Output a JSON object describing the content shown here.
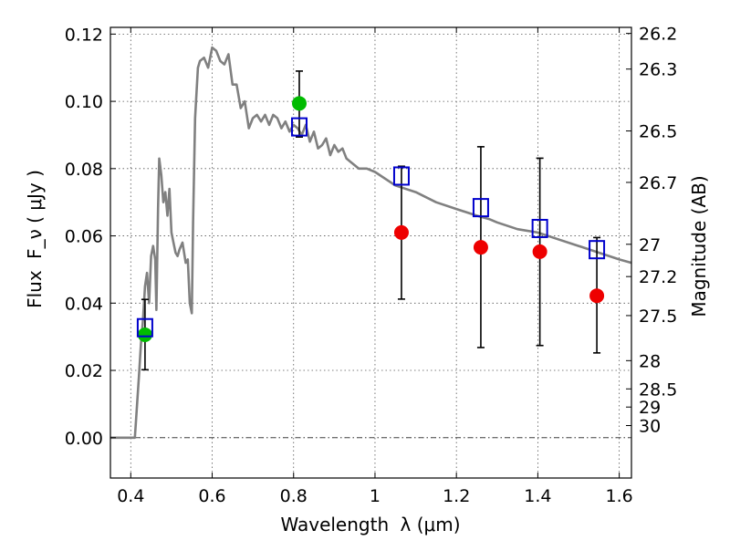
{
  "chart_data": {
    "type": "line",
    "title": "",
    "xlabel": "Wavelength",
    "xlabel_symbol": "λ (μm)",
    "ylabel": "Flux",
    "ylabel_symbol": "F_ν ( μJy )",
    "y2label": "Magnitude (AB)",
    "xlim": [
      0.35,
      1.63
    ],
    "ylim": [
      -0.012,
      0.122
    ],
    "grid": true,
    "x_ticks": [
      0.4,
      0.6,
      0.8,
      1.0,
      1.2,
      1.4,
      1.6
    ],
    "x_tick_labels": [
      "0.4",
      "0.6",
      "0.8",
      "1",
      "1.2",
      "1.4",
      "1.6"
    ],
    "y_ticks": [
      0.0,
      0.02,
      0.04,
      0.06,
      0.08,
      0.1,
      0.12
    ],
    "y_tick_labels": [
      "0.00",
      "0.02",
      "0.04",
      "0.06",
      "0.08",
      "0.10",
      "0.12"
    ],
    "y2_ticks": [
      {
        "flux": 0.1202,
        "label": "26.2"
      },
      {
        "flux": 0.1096,
        "label": "26.3"
      },
      {
        "flux": 0.0912,
        "label": "26.5"
      },
      {
        "flux": 0.0759,
        "label": "26.7"
      },
      {
        "flux": 0.0575,
        "label": "27"
      },
      {
        "flux": 0.0479,
        "label": "27.2"
      },
      {
        "flux": 0.0363,
        "label": "27.5"
      },
      {
        "flux": 0.0229,
        "label": "28"
      },
      {
        "flux": 0.0145,
        "label": "28.5"
      },
      {
        "flux": 0.0091,
        "label": "29"
      },
      {
        "flux": 0.0036,
        "label": "30"
      }
    ],
    "series": [
      {
        "kind": "line",
        "color": "#808080",
        "x": [
          0.35,
          0.41,
          0.415,
          0.42,
          0.425,
          0.43,
          0.435,
          0.44,
          0.445,
          0.45,
          0.455,
          0.46,
          0.463,
          0.467,
          0.47,
          0.475,
          0.48,
          0.485,
          0.49,
          0.495,
          0.5,
          0.505,
          0.51,
          0.515,
          0.52,
          0.527,
          0.535,
          0.54,
          0.545,
          0.55,
          0.553,
          0.558,
          0.565,
          0.57,
          0.58,
          0.59,
          0.6,
          0.61,
          0.62,
          0.63,
          0.64,
          0.65,
          0.66,
          0.67,
          0.68,
          0.69,
          0.7,
          0.71,
          0.72,
          0.73,
          0.74,
          0.75,
          0.76,
          0.77,
          0.78,
          0.79,
          0.8,
          0.81,
          0.82,
          0.83,
          0.84,
          0.85,
          0.86,
          0.87,
          0.88,
          0.89,
          0.9,
          0.91,
          0.92,
          0.93,
          0.94,
          0.95,
          0.96,
          0.97,
          0.98,
          1.0,
          1.05,
          1.1,
          1.15,
          1.2,
          1.25,
          1.28,
          1.3,
          1.35,
          1.4,
          1.45,
          1.5,
          1.55,
          1.6,
          1.63
        ],
        "y": [
          0.0,
          0.0,
          0.009,
          0.018,
          0.028,
          0.035,
          0.045,
          0.049,
          0.04,
          0.054,
          0.057,
          0.053,
          0.038,
          0.068,
          0.083,
          0.078,
          0.07,
          0.073,
          0.066,
          0.074,
          0.061,
          0.058,
          0.055,
          0.054,
          0.056,
          0.058,
          0.052,
          0.053,
          0.04,
          0.037,
          0.064,
          0.095,
          0.11,
          0.112,
          0.113,
          0.11,
          0.116,
          0.115,
          0.112,
          0.111,
          0.114,
          0.105,
          0.105,
          0.098,
          0.1,
          0.092,
          0.095,
          0.096,
          0.094,
          0.096,
          0.093,
          0.096,
          0.095,
          0.092,
          0.094,
          0.091,
          0.093,
          0.092,
          0.09,
          0.093,
          0.088,
          0.091,
          0.086,
          0.087,
          0.089,
          0.084,
          0.087,
          0.085,
          0.086,
          0.083,
          0.082,
          0.081,
          0.08,
          0.08,
          0.08,
          0.079,
          0.075,
          0.073,
          0.07,
          0.068,
          0.066,
          0.065,
          0.064,
          0.062,
          0.061,
          0.059,
          0.057,
          0.055,
          0.053,
          0.052
        ]
      },
      {
        "kind": "points",
        "color": "#00bb00",
        "points": [
          {
            "x": 0.435,
            "y": 0.0306
          },
          {
            "x": 0.814,
            "y": 0.0994,
            "err_lo": 0.0894,
            "err_hi": 0.109
          }
        ]
      },
      {
        "kind": "points",
        "color": "#ee0000",
        "points": [
          {
            "x": 1.065,
            "y": 0.061,
            "err_lo": 0.0412,
            "err_hi": 0.0807
          },
          {
            "x": 1.26,
            "y": 0.0566,
            "err_lo": 0.0268,
            "err_hi": 0.0865
          },
          {
            "x": 1.405,
            "y": 0.0553,
            "err_lo": 0.0274,
            "err_hi": 0.0831
          },
          {
            "x": 1.545,
            "y": 0.0422,
            "err_lo": 0.0252,
            "err_hi": 0.0595
          }
        ]
      },
      {
        "kind": "errorbar-only",
        "color": "#000000",
        "points": [
          {
            "x": 0.435,
            "err_lo": 0.0202,
            "err_hi": 0.0411
          }
        ]
      },
      {
        "kind": "squares",
        "color": "#0000cc",
        "points": [
          {
            "x": 0.435,
            "y": 0.0327
          },
          {
            "x": 0.814,
            "y": 0.0924
          },
          {
            "x": 1.065,
            "y": 0.0778
          },
          {
            "x": 1.26,
            "y": 0.0684
          },
          {
            "x": 1.405,
            "y": 0.0622
          },
          {
            "x": 1.545,
            "y": 0.0559
          }
        ]
      }
    ]
  }
}
